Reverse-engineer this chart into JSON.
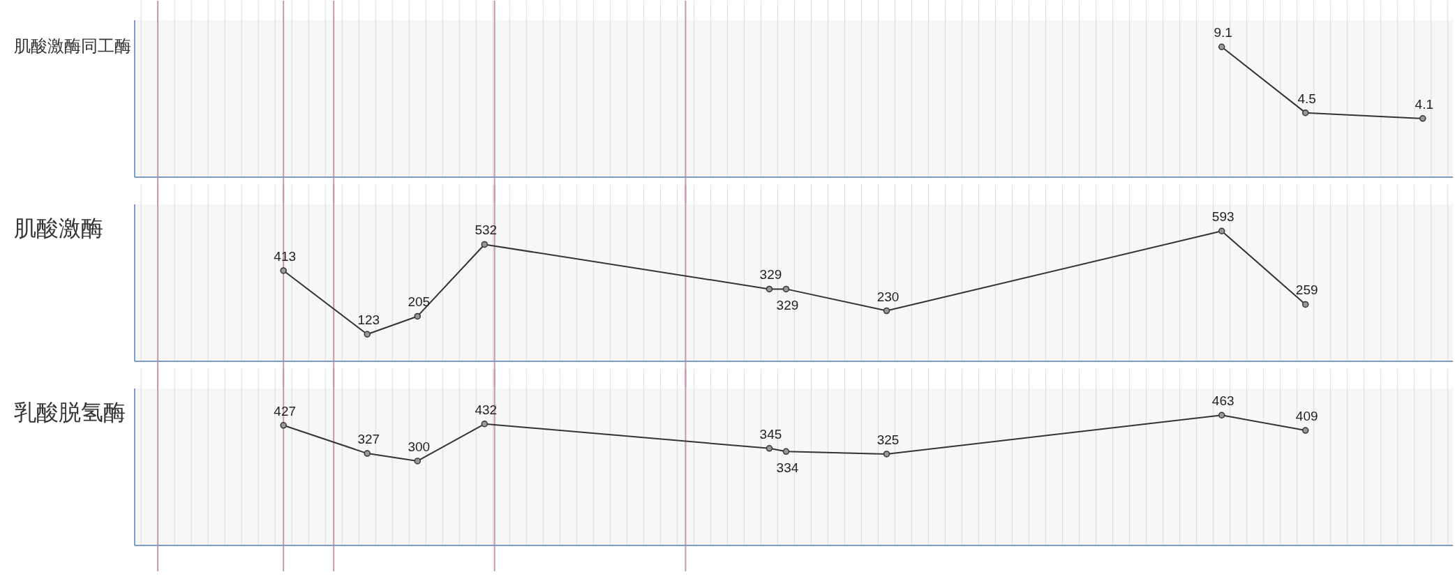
{
  "chart_data": [
    {
      "type": "line",
      "ylabel": "肌酸激酶同工酶",
      "categories": [
        null,
        null,
        null,
        null,
        null,
        null,
        null,
        null,
        null,
        null,
        null,
        null,
        null,
        null,
        null,
        null,
        null,
        null,
        null,
        null,
        null,
        null,
        null,
        null,
        null,
        null,
        null,
        null,
        null,
        null,
        null,
        null,
        null,
        null,
        null,
        null,
        null,
        null,
        null,
        null,
        null,
        null,
        null,
        null,
        null,
        null,
        null,
        null,
        null,
        null,
        null,
        null,
        null,
        null,
        null,
        null,
        null,
        null,
        null,
        null,
        null,
        null,
        null,
        null,
        null,
        null,
        null,
        null,
        null,
        null,
        null,
        null,
        null,
        null,
        null,
        null,
        null,
        null
      ],
      "values": [
        null,
        null,
        null,
        null,
        null,
        null,
        null,
        null,
        null,
        null,
        null,
        null,
        null,
        null,
        null,
        null,
        null,
        null,
        null,
        null,
        null,
        null,
        null,
        null,
        null,
        null,
        null,
        null,
        null,
        null,
        null,
        null,
        null,
        null,
        null,
        null,
        null,
        null,
        null,
        null,
        null,
        null,
        null,
        null,
        null,
        null,
        null,
        null,
        null,
        null,
        null,
        null,
        null,
        null,
        null,
        null,
        null,
        null,
        null,
        null,
        null,
        null,
        null,
        null,
        9.1,
        null,
        null,
        null,
        null,
        4.5,
        null,
        null,
        null,
        null,
        null,
        null,
        4.1,
        null
      ],
      "color": "#333333",
      "marker": "circle",
      "line_style": "solid",
      "data_labels": true,
      "grid": "x"
    },
    {
      "type": "line",
      "ylabel": "肌酸激酶",
      "categories": [
        null,
        null,
        null,
        null,
        null,
        null,
        null,
        null,
        null,
        null,
        null,
        null,
        null,
        null,
        null,
        null,
        null,
        null,
        null,
        null,
        null,
        null,
        null,
        null,
        null,
        null,
        null,
        null,
        null,
        null,
        null,
        null,
        null,
        null,
        null,
        null,
        null,
        null,
        null,
        null,
        null,
        null,
        null,
        null,
        null,
        null,
        null,
        null,
        null,
        null,
        null,
        null,
        null,
        null,
        null,
        null,
        null,
        null,
        null,
        null,
        null,
        null,
        null,
        null,
        null,
        null,
        null,
        null,
        null,
        null,
        null,
        null,
        null,
        null,
        null,
        null,
        null,
        null
      ],
      "values": [
        null,
        null,
        null,
        null,
        null,
        null,
        null,
        null,
        413,
        null,
        null,
        null,
        null,
        123,
        null,
        null,
        205,
        null,
        null,
        null,
        532,
        null,
        null,
        null,
        null,
        null,
        null,
        null,
        null,
        null,
        null,
        null,
        null,
        null,
        null,
        null,
        null,
        329,
        329,
        null,
        null,
        null,
        null,
        null,
        230,
        null,
        null,
        null,
        null,
        null,
        null,
        null,
        null,
        null,
        null,
        null,
        null,
        null,
        null,
        null,
        null,
        null,
        null,
        null,
        593,
        null,
        null,
        null,
        null,
        259,
        null,
        null,
        null,
        null,
        null,
        null,
        null,
        null
      ],
      "color": "#333333",
      "marker": "circle",
      "line_style": "solid",
      "data_labels": true,
      "grid": "x"
    },
    {
      "type": "line",
      "ylabel": "乳酸脱氢酶",
      "categories": [
        null,
        null,
        null,
        null,
        null,
        null,
        null,
        null,
        null,
        null,
        null,
        null,
        null,
        null,
        null,
        null,
        null,
        null,
        null,
        null,
        null,
        null,
        null,
        null,
        null,
        null,
        null,
        null,
        null,
        null,
        null,
        null,
        null,
        null,
        null,
        null,
        null,
        null,
        null,
        null,
        null,
        null,
        null,
        null,
        null,
        null,
        null,
        null,
        null,
        null,
        null,
        null,
        null,
        null,
        null,
        null,
        null,
        null,
        null,
        null,
        null,
        null,
        null,
        null,
        null,
        null,
        null,
        null,
        null,
        null,
        null,
        null,
        null,
        null,
        null,
        null,
        null,
        null
      ],
      "values": [
        null,
        null,
        null,
        null,
        null,
        null,
        null,
        null,
        427,
        null,
        null,
        null,
        null,
        327,
        null,
        null,
        300,
        null,
        null,
        null,
        432,
        null,
        null,
        null,
        null,
        null,
        null,
        null,
        null,
        null,
        null,
        null,
        null,
        null,
        null,
        null,
        null,
        345,
        334,
        null,
        null,
        null,
        null,
        null,
        325,
        null,
        null,
        null,
        null,
        null,
        null,
        null,
        null,
        null,
        null,
        null,
        null,
        null,
        null,
        null,
        null,
        null,
        null,
        null,
        463,
        null,
        null,
        null,
        null,
        409,
        null,
        null,
        null,
        null,
        null,
        null,
        null,
        null
      ],
      "color": "#333333",
      "marker": "circle",
      "line_style": "solid",
      "data_labels": true,
      "grid": "x"
    }
  ]
}
